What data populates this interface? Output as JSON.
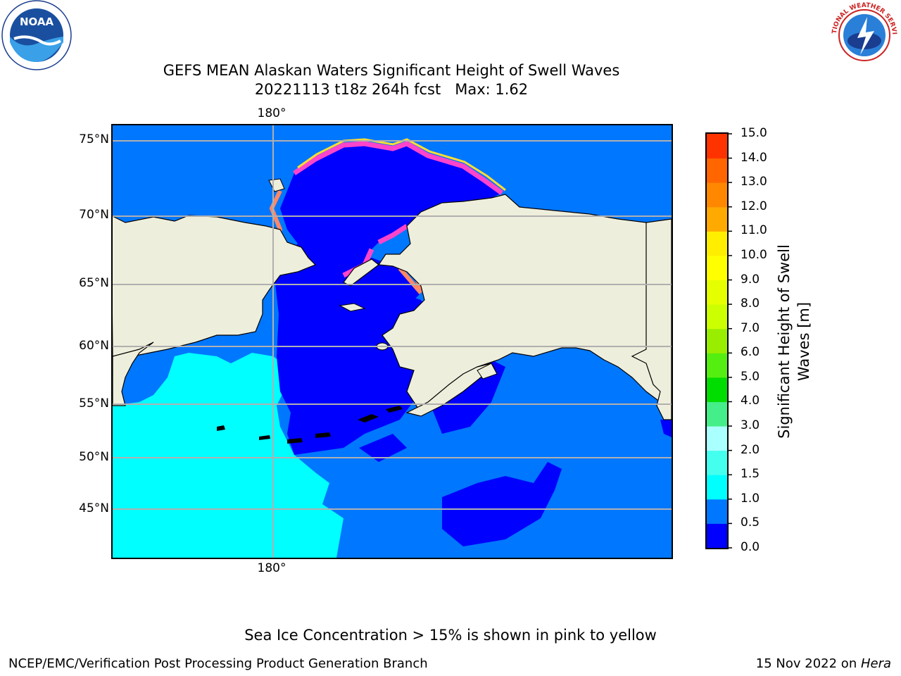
{
  "title": {
    "line1": "GEFS MEAN Alaskan Waters Significant Height of Swell Waves",
    "line2": "20221113 t18z 264h fcst   Max: 1.62"
  },
  "map": {
    "lat_labels": [
      "75°N",
      "70°N",
      "65°N",
      "60°N",
      "55°N",
      "50°N",
      "45°N"
    ],
    "lon_label_top": "180°",
    "lon_label_bottom": "180°",
    "colors": {
      "land": "#eeeedc",
      "water_0_05": "#0000ff",
      "water_05_10": "#0077ff",
      "water_10_15": "#00ffff",
      "ice_pink": "#ff44cc",
      "ice_salmon": "#ff8866",
      "ice_yellow": "#ffdd33",
      "grid": "#b0b0b0"
    }
  },
  "colorbar": {
    "label": "Significant Height of Swell Waves [m]",
    "ticks": [
      "15.0",
      "14.0",
      "13.0",
      "12.0",
      "11.0",
      "10.0",
      "9.0",
      "8.0",
      "7.0",
      "6.0",
      "5.0",
      "4.0",
      "3.0",
      "2.0",
      "1.5",
      "1.0",
      "0.5",
      "0.0"
    ],
    "colors_bottom_to_top": [
      "#0000ff",
      "#0077ff",
      "#00ffff",
      "#44ffee",
      "#aaffff",
      "#44ee88",
      "#00dd00",
      "#55ee11",
      "#99ee00",
      "#ccff00",
      "#e6ff00",
      "#ffff00",
      "#ffee00",
      "#ffaa00",
      "#ff8800",
      "#ff6600",
      "#ff3300",
      "#ff0000"
    ]
  },
  "note": "Sea Ice Concentration > 15% is shown in pink to yellow",
  "footer": {
    "left": "NCEP/EMC/Verification Post Processing Product Generation Branch",
    "right_prefix": "15 Nov 2022 on ",
    "right_em": "Hera"
  },
  "logos": {
    "noaa_text": "NOAA",
    "nws_text": "NATIONAL WEATHER SERVICE"
  }
}
